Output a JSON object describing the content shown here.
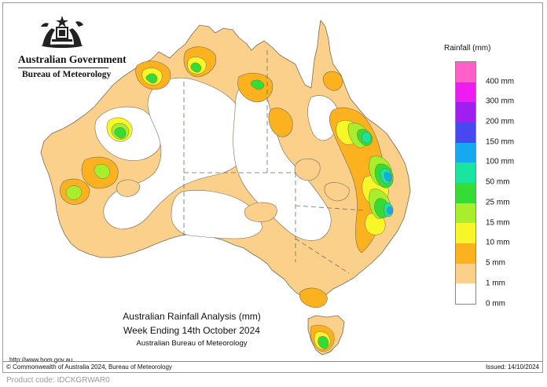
{
  "header": {
    "government": "Australian Government",
    "bureau": "Bureau of Meteorology"
  },
  "legend": {
    "title": "Rainfall (mm)",
    "categories": [
      {
        "label": "400 mm",
        "color": "#ff5fc8"
      },
      {
        "label": "300 mm",
        "color": "#ee1cf0"
      },
      {
        "label": "200 mm",
        "color": "#a11ef0"
      },
      {
        "label": "150 mm",
        "color": "#4848f0"
      },
      {
        "label": "100 mm",
        "color": "#16a8f0"
      },
      {
        "label": "50 mm",
        "color": "#1ae5a0"
      },
      {
        "label": "25 mm",
        "color": "#35dc35"
      },
      {
        "label": "15 mm",
        "color": "#a8ee2c"
      },
      {
        "label": "10 mm",
        "color": "#f6f628"
      },
      {
        "label": "5 mm",
        "color": "#fbb21e"
      },
      {
        "label": "1 mm",
        "color": "#fad08a"
      },
      {
        "label": "0 mm",
        "color": "#ffffff"
      }
    ]
  },
  "caption": {
    "title": "Australian Rainfall Analysis (mm)",
    "period": "Week Ending 14th October 2024",
    "source": "Australian Bureau of Meteorology"
  },
  "footer": {
    "url": "http://www.bom.gov.au",
    "copyright": "© Commonwealth of Australia 2024, Bureau of Meteorology",
    "issued": "Issued: 14/10/2024",
    "product_code": "Product code: IDCKGRWAR0"
  },
  "colors": {
    "none": "#ffffff",
    "light": "#fad08a",
    "moderate": "#fbb21e",
    "yellow": "#f6f628",
    "lime": "#a8ee2c",
    "green": "#35dc35",
    "teal": "#1ae5a0",
    "cyan": "#16a8f0",
    "outline": "#7a6a5a"
  }
}
